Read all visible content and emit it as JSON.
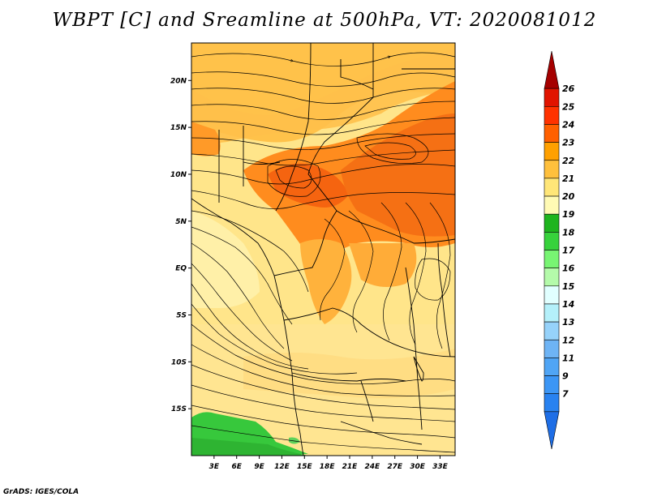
{
  "title": "WBPT [C] and Sreamline at 500hPa, VT: 2020081012",
  "credit": "GrADS: IGES/COLA",
  "map": {
    "lon_range": [
      0,
      35
    ],
    "lat_range": [
      -20,
      24
    ],
    "x_ticks": [
      "3E",
      "6E",
      "9E",
      "12E",
      "15E",
      "18E",
      "21E",
      "24E",
      "27E",
      "30E",
      "33E"
    ],
    "y_ticks": [
      "20N",
      "15N",
      "10N",
      "5N",
      "EQ",
      "5S",
      "10S",
      "15S"
    ],
    "field": "wet-bulb potential temperature",
    "overlay": "streamlines"
  },
  "colorbar": {
    "labels": [
      "7",
      "9",
      "11",
      "12",
      "13",
      "14",
      "15",
      "16",
      "17",
      "18",
      "19",
      "20",
      "21",
      "22",
      "23",
      "24",
      "25",
      "26"
    ],
    "colors": [
      "#1e6ee6",
      "#2882f0",
      "#3c96f5",
      "#50a5f5",
      "#6eb4f5",
      "#96d2fa",
      "#b4f0fa",
      "#e1ffff",
      "#b4faaa",
      "#78f573",
      "#37d23c",
      "#1eb41e",
      "#fffab4",
      "#ffe678",
      "#ffc03c",
      "#ffa000",
      "#ff6000",
      "#ff3200",
      "#e11400",
      "#a50000"
    ]
  }
}
